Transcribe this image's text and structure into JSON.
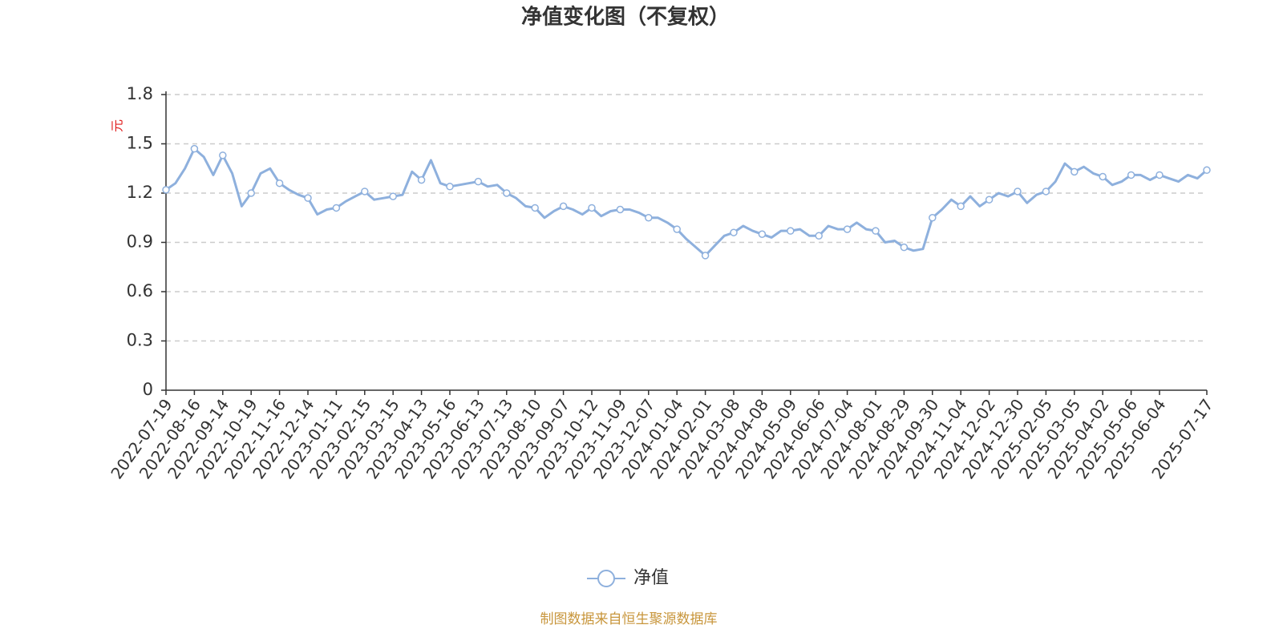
{
  "chart_data": {
    "type": "line",
    "title": "净值变化图（不复权）",
    "y_label": "元",
    "source": "制图数据来自恒生聚源数据库",
    "categories": [
      "2022-07-19",
      null,
      null,
      "2022-08-16",
      null,
      null,
      "2022-09-14",
      null,
      null,
      "2022-10-19",
      null,
      null,
      "2022-11-16",
      null,
      null,
      "2022-12-14",
      null,
      null,
      "2023-01-11",
      null,
      null,
      "2023-02-15",
      null,
      null,
      "2023-03-15",
      null,
      null,
      "2023-04-13",
      null,
      null,
      "2023-05-16",
      null,
      null,
      "2023-06-13",
      null,
      null,
      "2023-07-13",
      null,
      null,
      "2023-08-10",
      null,
      null,
      "2023-09-07",
      null,
      null,
      "2023-10-12",
      null,
      null,
      "2023-11-09",
      null,
      null,
      "2023-12-07",
      null,
      null,
      "2024-01-04",
      null,
      null,
      "2024-02-01",
      null,
      null,
      "2024-03-08",
      null,
      null,
      "2024-04-08",
      null,
      null,
      "2024-05-09",
      null,
      null,
      "2024-06-06",
      null,
      null,
      "2024-07-04",
      null,
      null,
      "2024-08-01",
      null,
      null,
      "2024-08-29",
      null,
      null,
      "2024-09-30",
      null,
      null,
      "2024-11-04",
      null,
      null,
      "2024-12-02",
      null,
      null,
      "2024-12-30",
      null,
      null,
      "2025-02-05",
      null,
      null,
      "2025-03-05",
      null,
      null,
      "2025-04-02",
      null,
      null,
      "2025-05-06",
      null,
      null,
      "2025-06-04",
      null,
      null,
      null,
      null,
      "2025-07-17"
    ],
    "series": [
      {
        "name": "净值",
        "color": "#8eb0dd",
        "values": [
          1.22,
          1.26,
          1.35,
          1.47,
          1.42,
          1.31,
          1.43,
          1.32,
          1.12,
          1.2,
          1.32,
          1.35,
          1.26,
          1.22,
          1.19,
          1.17,
          1.07,
          1.1,
          1.11,
          1.15,
          1.18,
          1.21,
          1.16,
          1.17,
          1.18,
          1.19,
          1.33,
          1.28,
          1.4,
          1.26,
          1.24,
          1.25,
          1.26,
          1.27,
          1.24,
          1.25,
          1.2,
          1.17,
          1.12,
          1.11,
          1.05,
          1.09,
          1.12,
          1.1,
          1.07,
          1.11,
          1.06,
          1.09,
          1.1,
          1.1,
          1.08,
          1.05,
          1.05,
          1.02,
          0.98,
          0.92,
          0.87,
          0.82,
          0.88,
          0.94,
          0.96,
          1.0,
          0.97,
          0.95,
          0.93,
          0.97,
          0.97,
          0.98,
          0.94,
          0.94,
          1.0,
          0.98,
          0.98,
          1.02,
          0.98,
          0.97,
          0.9,
          0.91,
          0.87,
          0.85,
          0.86,
          1.05,
          1.1,
          1.16,
          1.12,
          1.18,
          1.12,
          1.16,
          1.2,
          1.18,
          1.21,
          1.14,
          1.19,
          1.21,
          1.27,
          1.38,
          1.33,
          1.36,
          1.32,
          1.3,
          1.25,
          1.27,
          1.31,
          1.31,
          1.28,
          1.31,
          1.29,
          1.27,
          1.31,
          1.29,
          1.34
        ]
      }
    ],
    "ylim": [
      0,
      1.8
    ],
    "yticks": [
      0,
      0.3,
      0.6,
      0.9,
      1.2,
      1.5,
      1.8
    ],
    "grid": true,
    "legend": "bottom"
  }
}
